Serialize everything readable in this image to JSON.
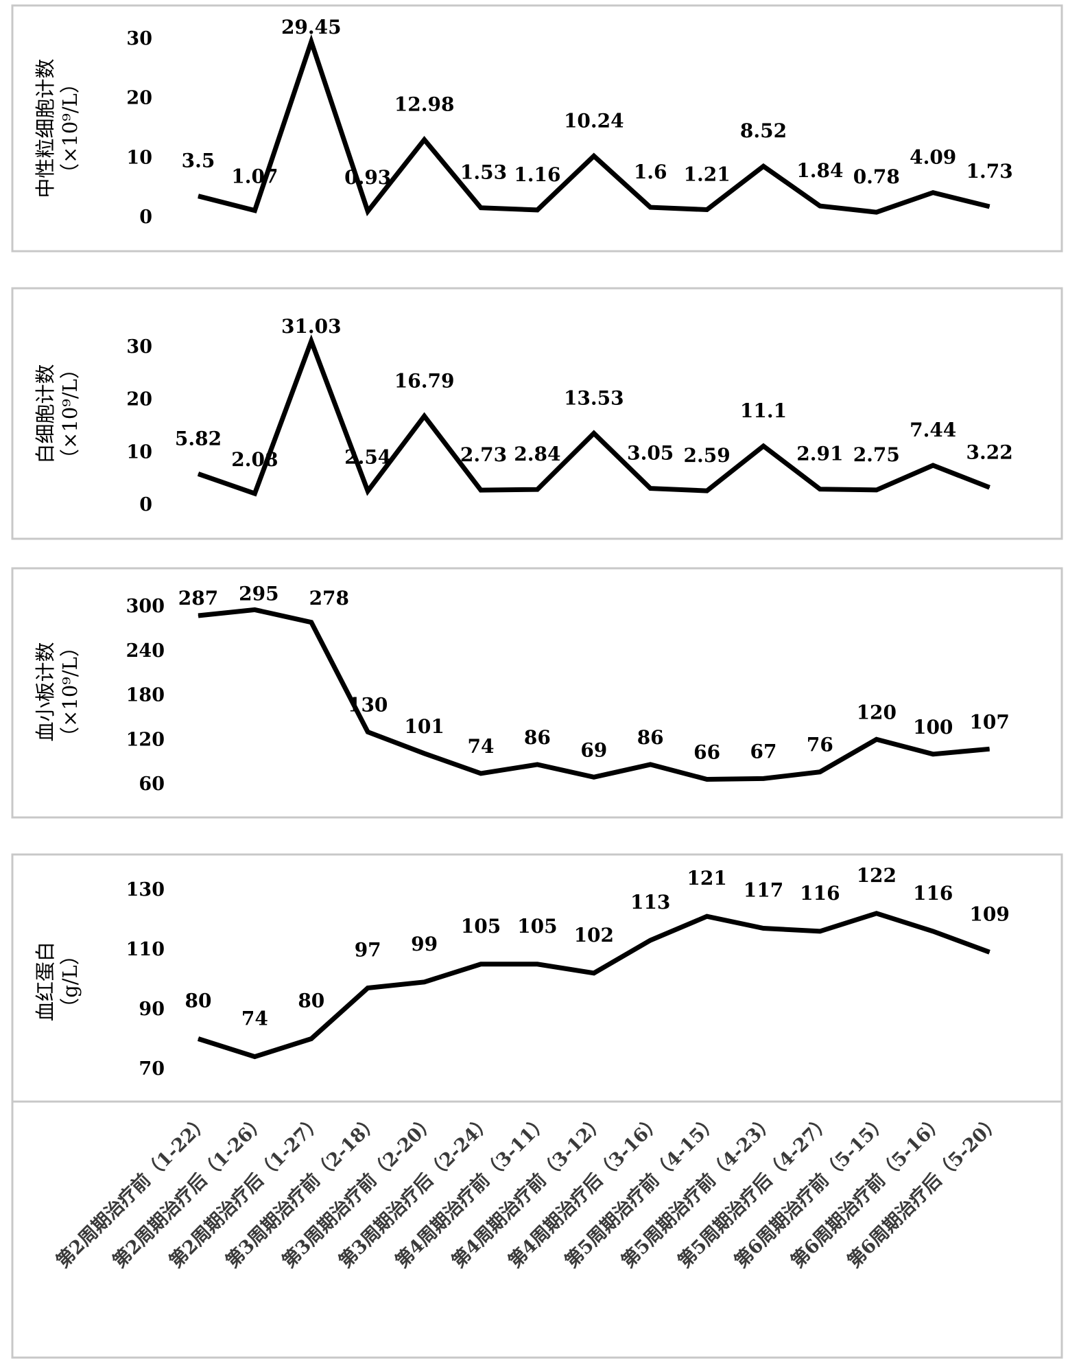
{
  "chart_data": [
    {
      "type": "line",
      "ylabel": "中性粒细胞计数",
      "yunit": "（×10⁹/L）",
      "ylim": [
        0,
        30
      ],
      "yticks": [
        0,
        10,
        20,
        30
      ],
      "grid": false,
      "series": [
        {
          "values": [
            3.5,
            1.07,
            29.45,
            0.93,
            12.98,
            1.53,
            1.16,
            10.24,
            1.6,
            1.21,
            8.52,
            1.84,
            0.78,
            4.09,
            1.73
          ]
        }
      ],
      "data_labels": [
        "3.5",
        "1.07",
        "29.45",
        "0.93",
        "12.98",
        "1.53",
        "1.16",
        "10.24",
        "1.6",
        "1.21",
        "8.52",
        "1.84",
        "0.78",
        "4.09",
        "1.73"
      ]
    },
    {
      "type": "line",
      "ylabel": "白细胞计数",
      "yunit": "（×10⁹/L）",
      "ylim": [
        0,
        30
      ],
      "yticks": [
        0,
        10,
        20,
        30
      ],
      "grid": false,
      "series": [
        {
          "values": [
            5.82,
            2.08,
            31.03,
            2.54,
            16.79,
            2.73,
            2.84,
            13.53,
            3.05,
            2.59,
            11.1,
            2.91,
            2.75,
            7.44,
            3.22
          ]
        }
      ],
      "data_labels": [
        "5.82",
        "2.08",
        "31.03",
        "2.54",
        "16.79",
        "2.73",
        "2.84",
        "13.53",
        "3.05",
        "2.59",
        "11.1",
        "2.91",
        "2.75",
        "7.44",
        "3.22"
      ]
    },
    {
      "type": "line",
      "ylabel": "血小板计数",
      "yunit": "（×10⁹/L）",
      "ylim": [
        60,
        300
      ],
      "yticks": [
        60,
        120,
        180,
        240,
        300
      ],
      "grid": false,
      "series": [
        {
          "values": [
            287,
            295,
            278,
            130,
            101,
            74,
            86,
            69,
            86,
            66,
            67,
            76,
            120,
            100,
            107
          ]
        }
      ],
      "data_labels": [
        "287",
        "295",
        "278",
        "130",
        "101",
        "74",
        "86",
        "69",
        "86",
        "66",
        "67",
        "76",
        "120",
        "100",
        "107"
      ]
    },
    {
      "type": "line",
      "ylabel": "血红蛋白",
      "yunit": "（g/L）",
      "ylim": [
        70,
        130
      ],
      "yticks": [
        70,
        90,
        110,
        130
      ],
      "grid": false,
      "series": [
        {
          "values": [
            80,
            74,
            80,
            97,
            99,
            105,
            105,
            102,
            113,
            121,
            117,
            116,
            122,
            116,
            109
          ]
        }
      ],
      "data_labels": [
        "80",
        "74",
        "80",
        "97",
        "99",
        "105",
        "105",
        "102",
        "113",
        "121",
        "117",
        "116",
        "122",
        "116",
        "109"
      ]
    }
  ],
  "categories": [
    "第2周期治疗前（1-22）",
    "第2周期治疗后（1-26）",
    "第2周期治疗后（1-27）",
    "第3周期治疗前（2-18）",
    "第3周期治疗前（2-20）",
    "第3周期治疗后（2-24）",
    "第4周期治疗前（3-11）",
    "第4周期治疗前（3-12）",
    "第4周期治疗后（3-16）",
    "第5周期治疗前（4-15）",
    "第5周期治疗前（4-23）",
    "第5周期治疗后（4-27）",
    "第6周期治疗前（5-15）",
    "第6周期治疗前（5-16）",
    "第6周期治疗后（5-20）"
  ],
  "colors": {
    "line": "#000000",
    "frame": "#c8c8c8",
    "category_text": "#3a3a3a"
  }
}
